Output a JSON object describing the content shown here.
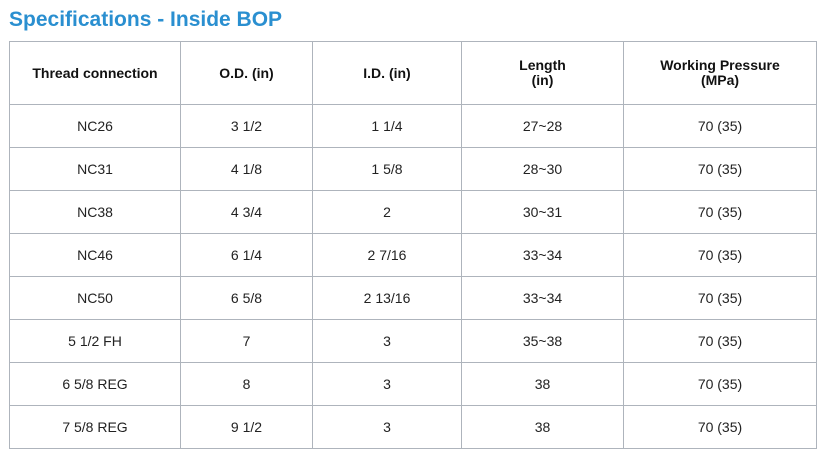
{
  "title": "Specifications - Inside BOP",
  "table": {
    "headers": [
      [
        "Thread connection"
      ],
      [
        "O.D. (in)"
      ],
      [
        "I.D. (in)"
      ],
      [
        "Length",
        "(in)"
      ],
      [
        "Working Pressure",
        "(MPa)"
      ]
    ],
    "rows": [
      [
        "NC26",
        "3 1/2",
        "1 1/4",
        "27~28",
        "70 (35)"
      ],
      [
        "NC31",
        "4 1/8",
        "1 5/8",
        "28~30",
        "70 (35)"
      ],
      [
        "NC38",
        "4 3/4",
        "2",
        "30~31",
        "70 (35)"
      ],
      [
        "NC46",
        "6 1/4",
        "2 7/16",
        "33~34",
        "70 (35)"
      ],
      [
        "NC50",
        "6 5/8",
        "2 13/16",
        "33~34",
        "70 (35)"
      ],
      [
        "5 1/2 FH",
        "7",
        "3",
        "35~38",
        "70 (35)"
      ],
      [
        "6 5/8 REG",
        "8",
        "3",
        "38",
        "70 (35)"
      ],
      [
        "7 5/8 REG",
        "9 1/2",
        "3",
        "38",
        "70 (35)"
      ]
    ]
  },
  "colors": {
    "title": "#2a8fd0",
    "border": "#aeb4bc"
  }
}
